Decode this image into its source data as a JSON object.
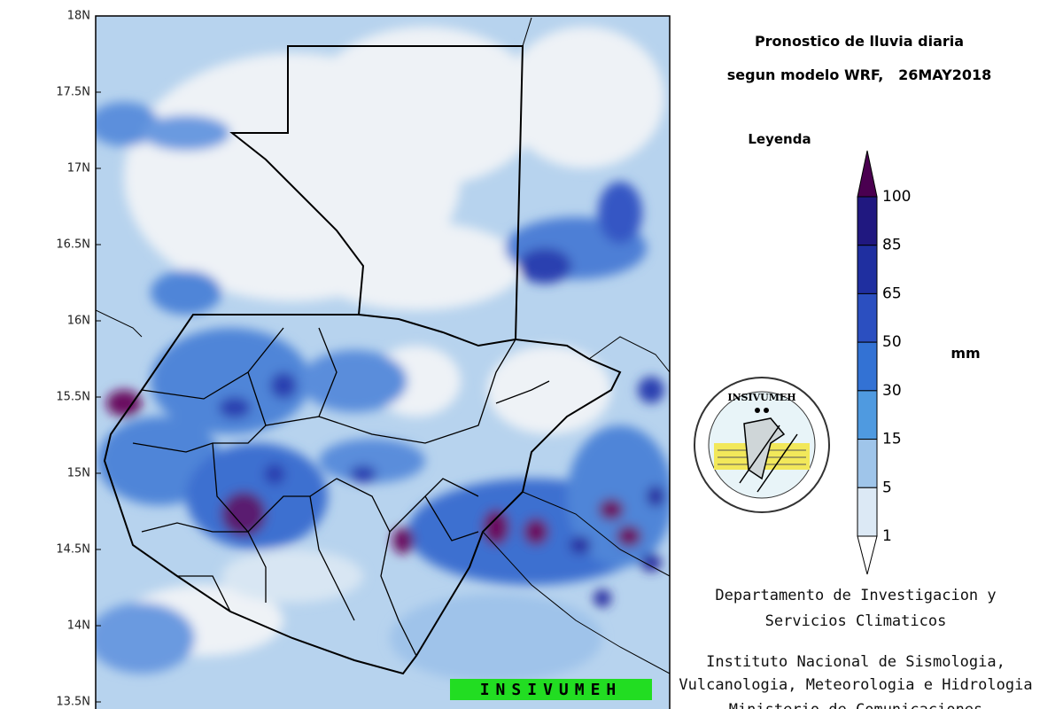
{
  "map": {
    "lat_labels": [
      "18N",
      "17.5N",
      "17N",
      "16.5N",
      "16N",
      "15.5N",
      "15N",
      "14.5N",
      "14N",
      "13.5N"
    ],
    "banner": "INSIVUMEH"
  },
  "header": {
    "title": "Pronostico de lluvia diaria",
    "subtitle": "segun modelo WRF,   26MAY2018"
  },
  "legend": {
    "title": "Leyenda",
    "unit": "mm",
    "labels": [
      "100",
      "85",
      "65",
      "50",
      "30",
      "15",
      "5",
      "1"
    ]
  },
  "logo": {
    "name": "INSIVUMEH"
  },
  "footer": {
    "lines": [
      "Departamento de Investigacion y",
      "Servicios Climaticos",
      "Instituto Nacional de Sismologia,",
      "Vulcanologia, Meteorologia e Hidrologia",
      "Ministerio de Comunicaciones"
    ]
  }
}
